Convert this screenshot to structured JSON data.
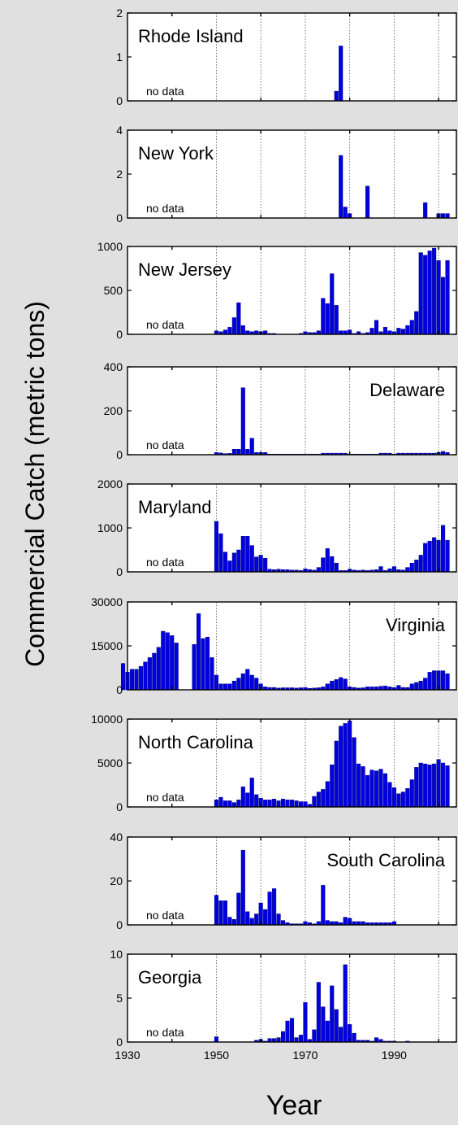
{
  "figure": {
    "ylabel": "Commercial Catch (metric tons)",
    "xlabel": "Year",
    "xticks": [
      1930,
      1950,
      1970,
      1990
    ],
    "no_data_label": "no data",
    "bar_color": "#0000e0",
    "bar_edge": "#000080",
    "panel_bg": "#ffffff"
  },
  "chart_data": [
    {
      "type": "bar",
      "title": "Rhode Island",
      "title_pos": "top-left",
      "no_data": true,
      "xlim": [
        1930,
        2004
      ],
      "ylim": [
        0,
        2
      ],
      "yticks": [
        0,
        1,
        2
      ],
      "x": [
        1977,
        1978
      ],
      "values": [
        0.22,
        1.25
      ]
    },
    {
      "type": "bar",
      "title": "New York",
      "title_pos": "top-left",
      "no_data": true,
      "xlim": [
        1930,
        2004
      ],
      "ylim": [
        0,
        4
      ],
      "yticks": [
        0,
        2,
        4
      ],
      "x": [
        1978,
        1979,
        1980,
        1984,
        1997,
        2000,
        2001,
        2002
      ],
      "values": [
        2.85,
        0.5,
        0.2,
        1.45,
        0.7,
        0.2,
        0.2,
        0.2
      ]
    },
    {
      "type": "bar",
      "title": "New Jersey",
      "title_pos": "top-left",
      "no_data": true,
      "xlim": [
        1930,
        2004
      ],
      "ylim": [
        0,
        1000
      ],
      "yticks": [
        0,
        500,
        1000
      ],
      "x": [
        1950,
        1951,
        1952,
        1953,
        1954,
        1955,
        1956,
        1957,
        1958,
        1959,
        1960,
        1961,
        1962,
        1963,
        1969,
        1970,
        1971,
        1972,
        1973,
        1974,
        1975,
        1976,
        1977,
        1978,
        1979,
        1980,
        1981,
        1982,
        1983,
        1984,
        1985,
        1986,
        1987,
        1988,
        1989,
        1990,
        1991,
        1992,
        1993,
        1994,
        1995,
        1996,
        1997,
        1998,
        1999,
        2000,
        2001,
        2002
      ],
      "values": [
        40,
        30,
        50,
        80,
        190,
        360,
        100,
        40,
        30,
        40,
        30,
        40,
        10,
        10,
        10,
        30,
        20,
        20,
        40,
        410,
        350,
        690,
        330,
        40,
        40,
        50,
        10,
        30,
        10,
        20,
        70,
        160,
        30,
        80,
        40,
        30,
        70,
        60,
        100,
        160,
        260,
        930,
        900,
        950,
        980,
        840,
        650,
        840
      ]
    },
    {
      "type": "bar",
      "title": "Delaware",
      "title_pos": "top-right",
      "no_data": true,
      "xlim": [
        1930,
        2004
      ],
      "ylim": [
        0,
        400
      ],
      "yticks": [
        0,
        200,
        400
      ],
      "x": [
        1950,
        1951,
        1952,
        1953,
        1954,
        1955,
        1956,
        1957,
        1958,
        1959,
        1960,
        1961,
        1962,
        1963,
        1964,
        1965,
        1966,
        1967,
        1968,
        1969,
        1970,
        1971,
        1972,
        1973,
        1974,
        1975,
        1976,
        1977,
        1978,
        1979,
        1980,
        1981,
        1982,
        1983,
        1984,
        1985,
        1986,
        1987,
        1988,
        1989,
        1990,
        1991,
        1992,
        1993,
        1994,
        1995,
        1996,
        1997,
        1998,
        1999,
        2000,
        2001,
        2002
      ],
      "values": [
        10,
        8,
        5,
        6,
        25,
        25,
        305,
        25,
        75,
        10,
        10,
        10,
        3,
        3,
        3,
        3,
        3,
        3,
        3,
        3,
        3,
        3,
        3,
        3,
        7,
        7,
        7,
        7,
        7,
        7,
        3,
        3,
        3,
        3,
        3,
        3,
        3,
        7,
        7,
        7,
        3,
        7,
        7,
        7,
        7,
        7,
        7,
        7,
        7,
        7,
        10,
        15,
        10
      ]
    },
    {
      "type": "bar",
      "title": "Maryland",
      "title_pos": "top-left",
      "no_data": true,
      "xlim": [
        1930,
        2004
      ],
      "ylim": [
        0,
        2000
      ],
      "yticks": [
        0,
        1000,
        2000
      ],
      "x": [
        1950,
        1951,
        1952,
        1953,
        1954,
        1955,
        1956,
        1957,
        1958,
        1959,
        1960,
        1961,
        1962,
        1963,
        1964,
        1965,
        1966,
        1967,
        1968,
        1969,
        1970,
        1971,
        1972,
        1973,
        1974,
        1975,
        1976,
        1977,
        1978,
        1979,
        1980,
        1981,
        1982,
        1983,
        1984,
        1985,
        1986,
        1987,
        1988,
        1989,
        1990,
        1991,
        1992,
        1993,
        1994,
        1995,
        1996,
        1997,
        1998,
        1999,
        2000,
        2001,
        2002
      ],
      "values": [
        1150,
        870,
        450,
        250,
        430,
        500,
        810,
        810,
        600,
        340,
        380,
        310,
        60,
        50,
        60,
        50,
        50,
        40,
        40,
        30,
        70,
        50,
        40,
        100,
        320,
        530,
        350,
        200,
        30,
        30,
        60,
        40,
        30,
        40,
        30,
        40,
        50,
        120,
        30,
        70,
        120,
        50,
        40,
        100,
        200,
        270,
        380,
        650,
        700,
        780,
        720,
        1060,
        720
      ]
    },
    {
      "type": "bar",
      "title": "Virginia",
      "title_pos": "top-right",
      "no_data": false,
      "xlim": [
        1930,
        2004
      ],
      "ylim": [
        0,
        30000
      ],
      "yticks": [
        0,
        15000,
        30000
      ],
      "x": [
        1929,
        1930,
        1931,
        1932,
        1933,
        1934,
        1935,
        1936,
        1937,
        1938,
        1939,
        1940,
        1941,
        1945,
        1946,
        1947,
        1948,
        1949,
        1950,
        1951,
        1952,
        1953,
        1954,
        1955,
        1956,
        1957,
        1958,
        1959,
        1960,
        1961,
        1962,
        1963,
        1964,
        1965,
        1966,
        1967,
        1968,
        1969,
        1970,
        1971,
        1972,
        1973,
        1974,
        1975,
        1976,
        1977,
        1978,
        1979,
        1980,
        1981,
        1982,
        1983,
        1984,
        1985,
        1986,
        1987,
        1988,
        1989,
        1990,
        1991,
        1992,
        1993,
        1994,
        1995,
        1996,
        1997,
        1998,
        1999,
        2000,
        2001,
        2002
      ],
      "values": [
        9000,
        6000,
        7000,
        7000,
        8000,
        9500,
        11000,
        12500,
        14500,
        20000,
        19500,
        18500,
        16000,
        15500,
        26000,
        17500,
        18000,
        11000,
        5000,
        2000,
        2000,
        2000,
        3000,
        4000,
        5500,
        7000,
        5000,
        4000,
        2000,
        1000,
        800,
        800,
        600,
        700,
        700,
        700,
        600,
        700,
        800,
        500,
        600,
        700,
        1000,
        2000,
        3000,
        3500,
        4200,
        3700,
        1000,
        800,
        600,
        700,
        1000,
        1000,
        1000,
        1200,
        1300,
        1000,
        800,
        1500,
        800,
        800,
        2000,
        2500,
        3000,
        4000,
        6000,
        6500,
        6500,
        6500,
        5500
      ]
    },
    {
      "type": "bar",
      "title": "North Carolina",
      "title_pos": "top-left",
      "no_data": true,
      "xlim": [
        1930,
        2004
      ],
      "ylim": [
        0,
        10000
      ],
      "yticks": [
        0,
        5000,
        10000
      ],
      "x": [
        1950,
        1951,
        1952,
        1953,
        1954,
        1955,
        1956,
        1957,
        1958,
        1959,
        1960,
        1961,
        1962,
        1963,
        1964,
        1965,
        1966,
        1967,
        1968,
        1969,
        1970,
        1971,
        1972,
        1973,
        1974,
        1975,
        1976,
        1977,
        1978,
        1979,
        1980,
        1981,
        1982,
        1983,
        1984,
        1985,
        1986,
        1987,
        1988,
        1989,
        1990,
        1991,
        1992,
        1993,
        1994,
        1995,
        1996,
        1997,
        1998,
        1999,
        2000,
        2001,
        2002
      ],
      "values": [
        800,
        1100,
        700,
        700,
        500,
        800,
        2300,
        1600,
        3300,
        1400,
        1000,
        800,
        800,
        900,
        700,
        900,
        800,
        800,
        700,
        600,
        600,
        300,
        1200,
        1700,
        2000,
        2900,
        4800,
        7500,
        9200,
        9500,
        9800,
        7900,
        4900,
        4600,
        3600,
        4200,
        4100,
        4300,
        3800,
        2800,
        2200,
        1500,
        1700,
        2100,
        3100,
        4500,
        5000,
        4900,
        4800,
        4900,
        5400,
        5000,
        4700
      ]
    },
    {
      "type": "bar",
      "title": "South Carolina",
      "title_pos": "top-right",
      "no_data": true,
      "xlim": [
        1930,
        2004
      ],
      "ylim": [
        0,
        40
      ],
      "yticks": [
        0,
        20,
        40
      ],
      "x": [
        1950,
        1951,
        1952,
        1953,
        1954,
        1955,
        1956,
        1957,
        1958,
        1959,
        1960,
        1961,
        1962,
        1963,
        1964,
        1965,
        1966,
        1967,
        1968,
        1969,
        1970,
        1971,
        1972,
        1973,
        1974,
        1975,
        1976,
        1977,
        1978,
        1979,
        1980,
        1981,
        1982,
        1983,
        1984,
        1985,
        1986,
        1987,
        1988,
        1989,
        1990
      ],
      "values": [
        13.5,
        11,
        11,
        3.5,
        2.5,
        14.5,
        34,
        6,
        3,
        5,
        10,
        7,
        15,
        16.5,
        5,
        2,
        1,
        0.5,
        0.5,
        0.5,
        1.5,
        1,
        0.5,
        1.5,
        18,
        2,
        1.5,
        1.5,
        1,
        3.5,
        3,
        1.5,
        1.5,
        1.5,
        1,
        1,
        1,
        1,
        1,
        1,
        1.5
      ]
    },
    {
      "type": "bar",
      "title": "Georgia",
      "title_pos": "top-left",
      "no_data": true,
      "xlim": [
        1930,
        2004
      ],
      "ylim": [
        0,
        10
      ],
      "yticks": [
        0,
        5,
        10
      ],
      "x": [
        1950,
        1959,
        1960,
        1961,
        1962,
        1963,
        1964,
        1965,
        1966,
        1967,
        1968,
        1969,
        1970,
        1971,
        1972,
        1973,
        1974,
        1975,
        1976,
        1977,
        1978,
        1979,
        1980,
        1981,
        1982,
        1983,
        1984,
        1985,
        1986,
        1987,
        1988,
        1989,
        1990,
        1993
      ],
      "values": [
        0.6,
        0.2,
        0.3,
        0.1,
        0.4,
        0.4,
        0.5,
        1.2,
        2.4,
        2.7,
        0.5,
        0.8,
        4.5,
        0.3,
        1.4,
        6.8,
        4.0,
        2.4,
        6.4,
        3.7,
        1.7,
        8.8,
        2.0,
        1.0,
        0.2,
        0.2,
        0.2,
        0.1,
        0.5,
        0.3,
        0.1,
        0.1,
        0.1,
        0.1
      ]
    }
  ]
}
